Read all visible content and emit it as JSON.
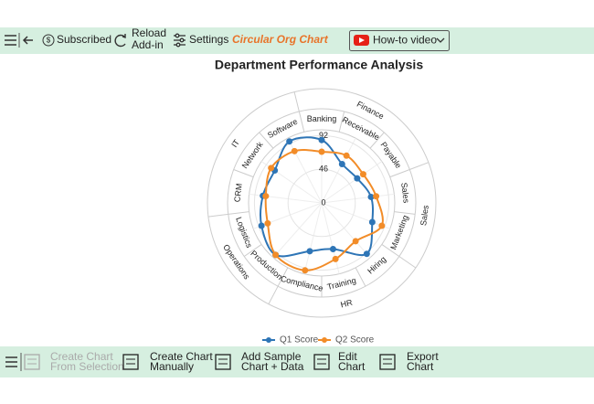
{
  "toolbar": {
    "subscribed": "Subscribed",
    "reload": [
      "Reload",
      "Add-in"
    ],
    "settings": "Settings",
    "app_name": "Circular Org Chart",
    "video": "How-to video"
  },
  "bottom_toolbar": {
    "items": [
      {
        "label": [
          "Create Chart",
          "From Selection"
        ],
        "disabled": true
      },
      {
        "label": [
          "Create Chart",
          "Manually"
        ],
        "disabled": false
      },
      {
        "label": [
          "Add Sample",
          "Chart + Data"
        ],
        "disabled": false
      },
      {
        "label": [
          "Edit",
          "Chart"
        ],
        "disabled": false
      },
      {
        "label": [
          "Export",
          "Chart"
        ],
        "disabled": false
      }
    ]
  },
  "chart_data": {
    "type": "radar",
    "title": "Department Performance Analysis",
    "categories": [
      "Banking",
      "Receivable",
      "Payable",
      "Sales",
      "Marketing",
      "Hiring",
      "Training",
      "Compliance",
      "Production",
      "Logistics",
      "CRM",
      "Network",
      "Software"
    ],
    "groups": [
      {
        "name": "Finance",
        "categories": [
          "Banking",
          "Receivable",
          "Payable"
        ]
      },
      {
        "name": "Sales",
        "categories": [
          "Sales",
          "Marketing"
        ]
      },
      {
        "name": "HR",
        "categories": [
          "Hiring",
          "Training",
          "Compliance"
        ]
      },
      {
        "name": "Operations",
        "categories": [
          "Production",
          "Logistics"
        ]
      },
      {
        "name": "IT",
        "categories": [
          "CRM",
          "Network",
          "Software"
        ]
      }
    ],
    "series": [
      {
        "name": "Q1 Score",
        "color": "#2e75b6",
        "values": [
          86,
          60,
          59,
          68,
          74,
          93,
          65,
          68,
          95,
          88,
          81,
          78,
          95
        ]
      },
      {
        "name": "Q2 Score",
        "color": "#f28c28",
        "values": [
          70,
          73,
          69,
          75,
          88,
          70,
          79,
          95,
          95,
          79,
          77,
          84,
          80
        ]
      }
    ],
    "ylim": [
      0,
      100
    ],
    "yticks": [
      0,
      46,
      92
    ],
    "legend": "bottom"
  }
}
